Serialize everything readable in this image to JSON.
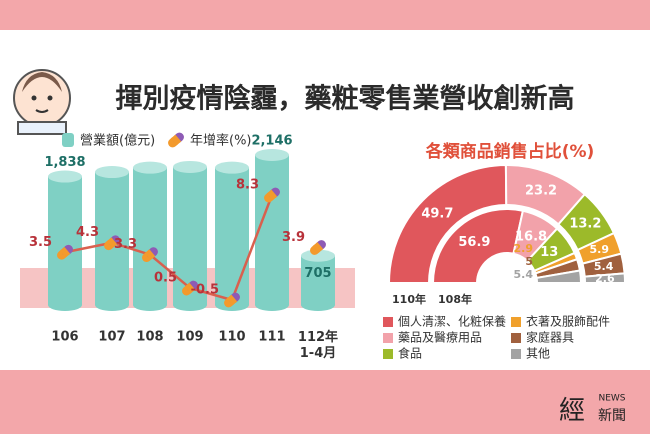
{
  "header": {
    "title": "揮別疫情陰霾，藥粧零售業營收創新高"
  },
  "chart_data": [
    {
      "type": "bar",
      "categories": [
        "106",
        "107",
        "108",
        "109",
        "110",
        "111",
        "112年\n1-4月"
      ],
      "series": [
        {
          "name": "營業額(億元)",
          "color": "#7fd0c4",
          "label_color": "#1e6f66",
          "values": [
            1838,
            1902,
            1965,
            1975,
            1965,
            2146,
            705
          ],
          "value_labels": [
            "1,838",
            null,
            null,
            null,
            null,
            "2,146",
            "705"
          ]
        },
        {
          "name": "年增率(%)",
          "type": "line",
          "color": "#d9604e",
          "label_color": "#b8323a",
          "connect_last": false,
          "values": [
            3.5,
            4.3,
            3.3,
            0.5,
            -0.5,
            8.3,
            3.9
          ]
        }
      ]
    },
    {
      "type": "donut",
      "title": "各類商品銷售占比(%)",
      "categories": [
        "個人清潔、化粧保養",
        "藥品及醫療用品",
        "食品",
        "衣著及服飾配件",
        "家庭器具",
        "其他"
      ],
      "colors": [
        "#e0575c",
        "#f2a2aa",
        "#9cba2a",
        "#f0a02c",
        "#a0603e",
        "#a3a3a3"
      ],
      "series": [
        {
          "name": "110年",
          "values": [
            49.7,
            23.2,
            13.2,
            5.9,
            5.4,
            2.6
          ]
        },
        {
          "name": "108年",
          "values": [
            56.9,
            16.8,
            13.0,
            2.9,
            5.0,
            5.4
          ]
        }
      ]
    }
  ],
  "logo": {
    "mark": "經",
    "news": "NEWS",
    "text": "新聞"
  }
}
